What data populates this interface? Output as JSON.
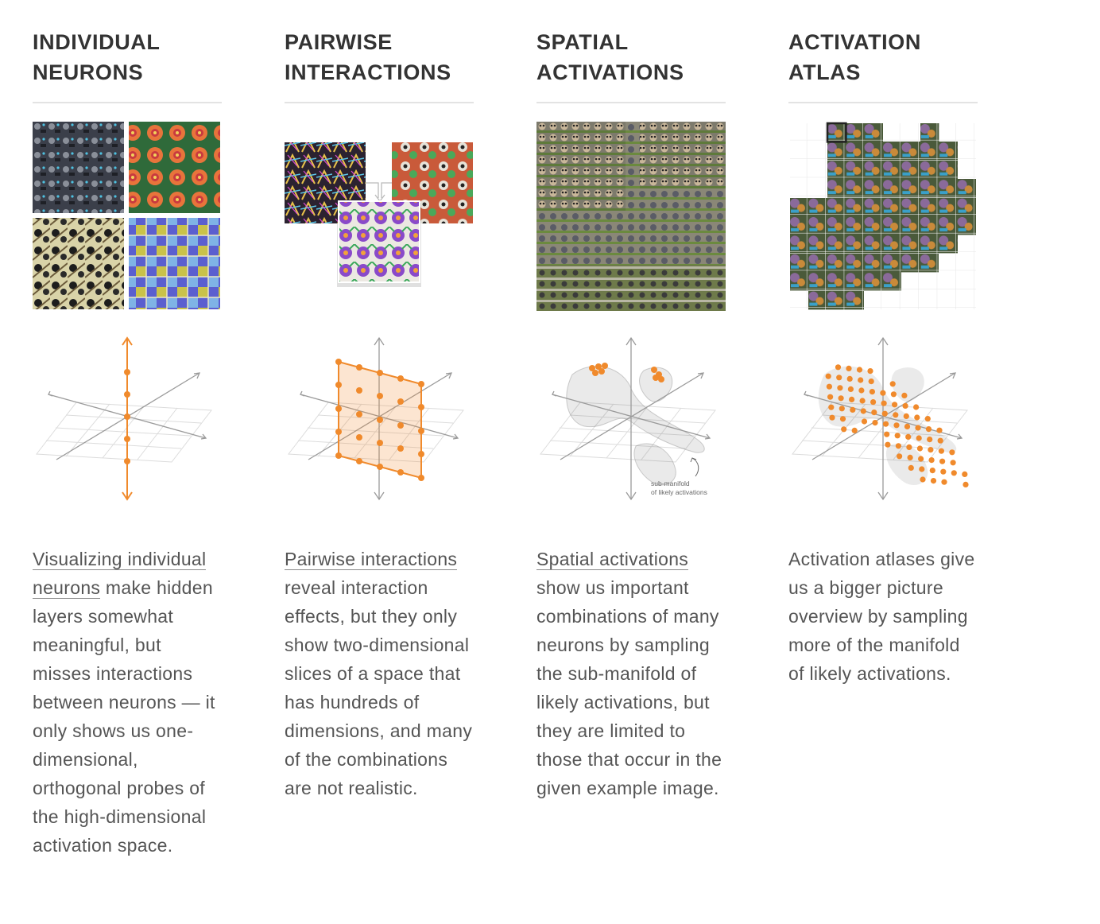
{
  "columns": [
    {
      "title_line1": "INDIVIDUAL",
      "title_line2": "NEURONS",
      "link": "Visualizing individual neurons",
      "text": " make hidden layers somewhat meaningful, but misses interactions between neurons — it only shows us one-dimensional, orthogonal probes of the high-dimensional activation space."
    },
    {
      "title_line1": "PAIRWISE",
      "title_line2": "INTERACTIONS",
      "link": "Pairwise interactions",
      "text": " reveal interaction effects, but they only show two-dimensional slices of a space that has hundreds of dimensions, and many of the combinations are not realistic."
    },
    {
      "title_line1": "SPATIAL",
      "title_line2": "ACTIVATIONS",
      "link": "Spatial activations",
      "text": " show us important combinations of many neurons by sampling the sub-manifold of likely activations, but they are limited to those that occur in the given example image.",
      "annotation_line1": "sub-manifold",
      "annotation_line2": "of likely activations"
    },
    {
      "title_line1": "ACTIVATION",
      "title_line2": "ATLAS",
      "text": "Activation atlases give us a bigger picture overview by sampling more of the manifold of likely activations."
    }
  ],
  "colors": {
    "accent": "#f08a2c",
    "axis": "#9a9a9a",
    "grid": "#dcdcdc"
  }
}
